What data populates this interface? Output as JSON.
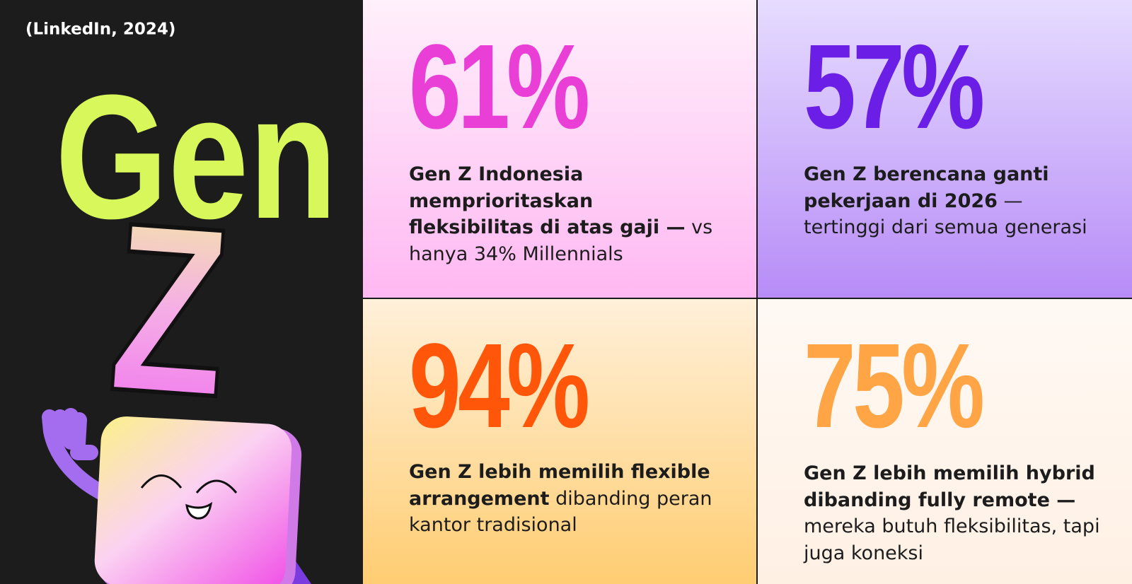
{
  "header": {
    "source": "(LinkedIn, 2024)",
    "title_line1": "Gen",
    "title_line2": "Z"
  },
  "cards": [
    {
      "stat": "61%",
      "bold": "Gen Z Indonesia memprioritaskan fleksibilitas di atas gaji —",
      "regular": "vs hanya 34% Millennials"
    },
    {
      "stat": "57%",
      "bold": "Gen Z berencana ganti pekerjaan di 2026",
      "regular": "— tertinggi dari semua generasi"
    },
    {
      "stat": "94%",
      "bold": "Gen Z lebih memilih flexible arrangement",
      "regular": "dibanding peran kantor tradisional"
    },
    {
      "stat": "75%",
      "bold": "Gen Z lebih memilih hybrid dibanding fully remote —",
      "regular": "mereka butuh fleksibilitas, tapi juga koneksi"
    }
  ]
}
